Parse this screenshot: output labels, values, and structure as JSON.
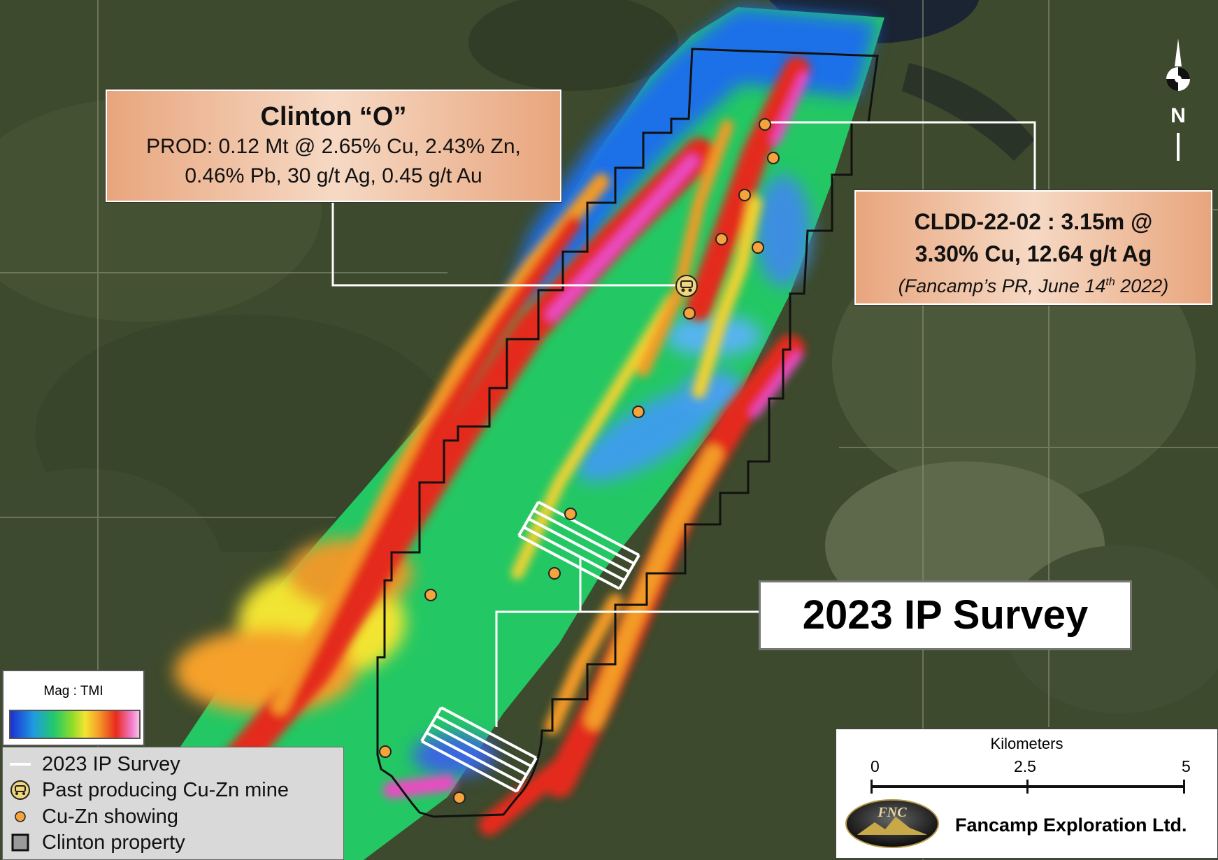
{
  "callouts": {
    "clinton": {
      "title": "Clinton “O”",
      "line1": "PROD: 0.12 Mt @ 2.65% Cu, 2.43% Zn,",
      "line2": "0.46% Pb, 30 g/t Ag, 0.45 g/t Au"
    },
    "cldd": {
      "line1": "CLDD-22-02 : 3.15m @",
      "line2": "3.30% Cu, 12.64 g/t Ag",
      "pr_prefix": "(Fancamp’s PR, June 14",
      "pr_sup": "th",
      "pr_suffix": " 2022)"
    },
    "survey": "2023 IP Survey"
  },
  "mag_legend": {
    "title": "Mag : TMI",
    "colors": [
      "#1c2fd4",
      "#1e9be0",
      "#22c96a",
      "#8fdc2a",
      "#f2e431",
      "#f5a12b",
      "#ea2a1c",
      "#f079c8"
    ]
  },
  "legend": {
    "items": [
      {
        "label": "2023 IP Survey",
        "icon": "white-line"
      },
      {
        "label": "Past producing Cu-Zn mine",
        "icon": "mine-icon"
      },
      {
        "label": "Cu-Zn showing",
        "icon": "orange-dot"
      },
      {
        "label": "Clinton property",
        "icon": "property-square"
      }
    ]
  },
  "scale": {
    "title": "Kilometers",
    "ticks": [
      "0",
      "2.5",
      "5"
    ]
  },
  "logo": {
    "text": "FNC"
  },
  "company": "Fancamp Exploration Ltd.",
  "north": "N",
  "colors": {
    "showing": "#f4a43b",
    "callout": "#e8a57d",
    "property": "#111111"
  }
}
